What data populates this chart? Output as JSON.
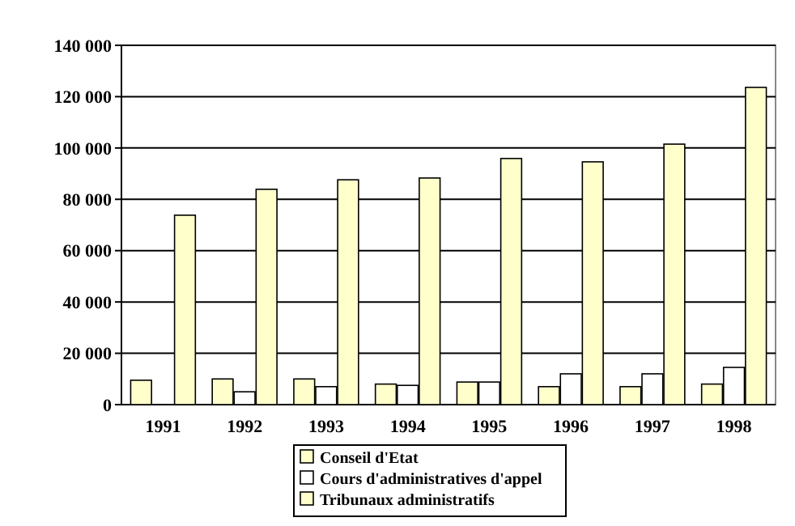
{
  "chart_data": {
    "type": "bar",
    "categories": [
      "1991",
      "1992",
      "1993",
      "1994",
      "1995",
      "1996",
      "1997",
      "1998"
    ],
    "series": [
      {
        "name": "Conseil d'Etat",
        "color": "#ffffcc",
        "values": [
          9500,
          10000,
          10000,
          8000,
          8800,
          7000,
          7000,
          8000
        ]
      },
      {
        "name": "Cours d'administratives d'appel",
        "color": "#ffffff",
        "values": [
          0,
          5000,
          7000,
          7500,
          8800,
          12000,
          12000,
          14500
        ]
      },
      {
        "name": "Tribunaux administratifs",
        "color": "#ffffcc",
        "values": [
          73800,
          83900,
          87600,
          88300,
          95900,
          94600,
          101500,
          123600
        ]
      }
    ],
    "ylim": [
      0,
      140000
    ],
    "yticks": [
      {
        "value": 0,
        "label": "0"
      },
      {
        "value": 20000,
        "label": "20 000"
      },
      {
        "value": 40000,
        "label": "40 000"
      },
      {
        "value": 60000,
        "label": "60 000"
      },
      {
        "value": 80000,
        "label": "80 000"
      },
      {
        "value": 100000,
        "label": "100 000"
      },
      {
        "value": 120000,
        "label": "120 000"
      },
      {
        "value": 140000,
        "label": "140 000"
      }
    ],
    "grid": "y",
    "legend": "bottom"
  }
}
